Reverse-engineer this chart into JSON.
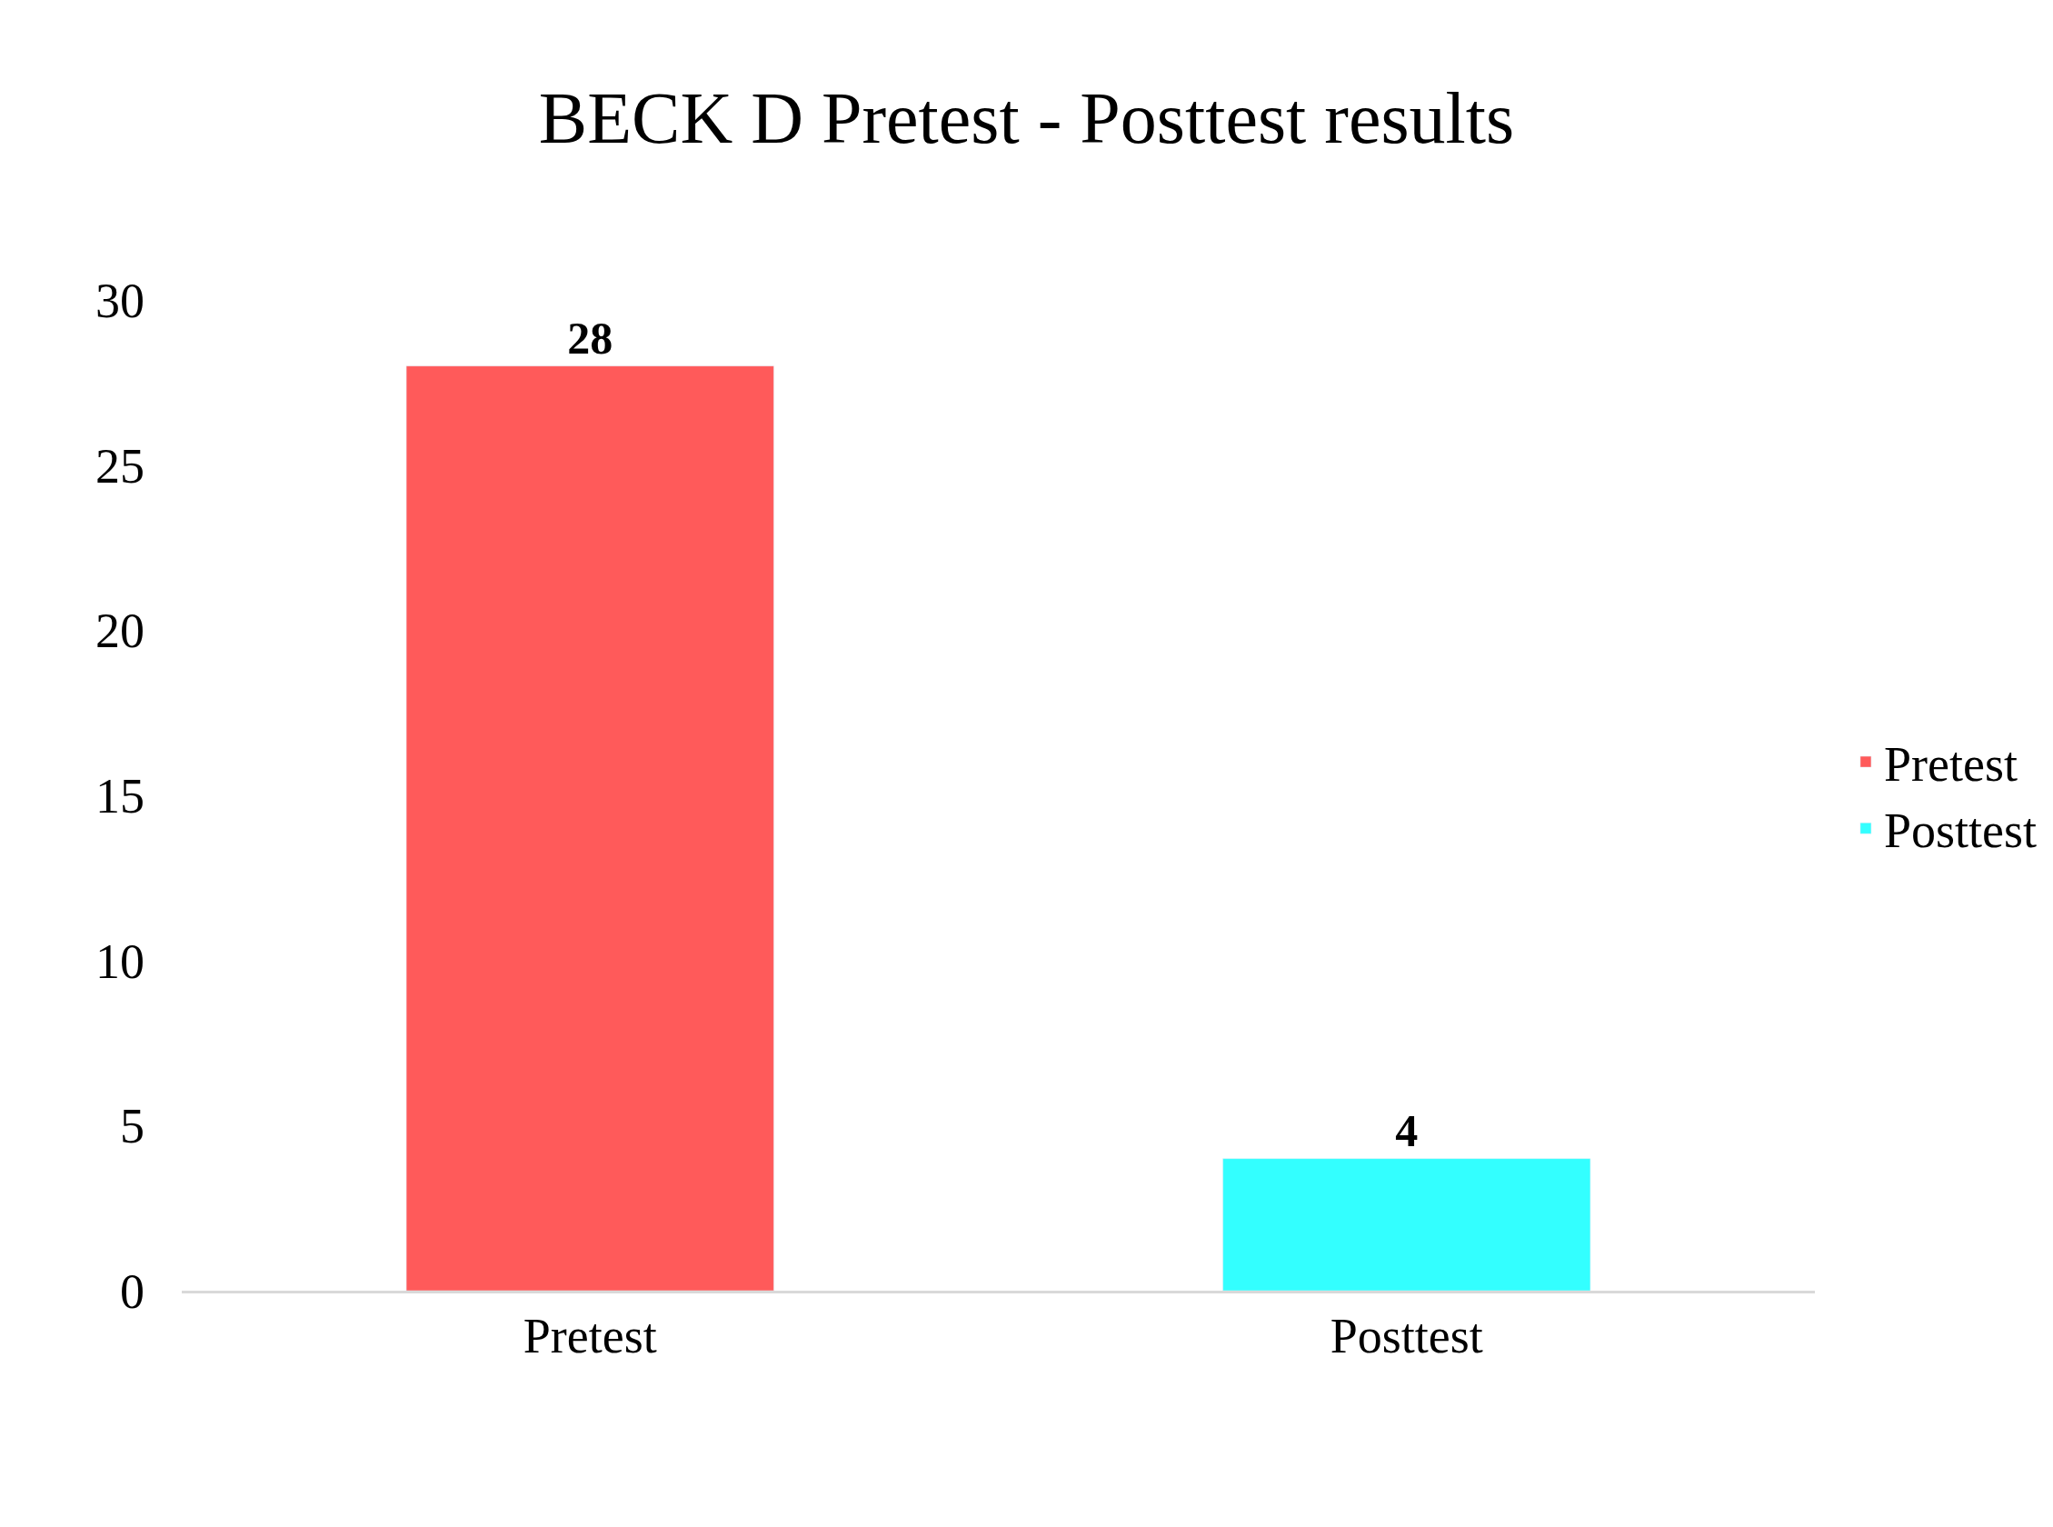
{
  "chart_data": {
    "type": "bar",
    "title": "BECK D Pretest - Posttest results",
    "categories": [
      "Pretest",
      "Posttest"
    ],
    "series": [
      {
        "name": "Pretest",
        "color": "#ff5a5a",
        "values": [
          28,
          null
        ]
      },
      {
        "name": "Posttest",
        "color": "#33ffff",
        "values": [
          null,
          4
        ]
      }
    ],
    "ylim": [
      0,
      30
    ],
    "yticks": [
      0,
      5,
      10,
      15,
      20,
      25,
      30
    ],
    "legend": "right",
    "data_labels": true
  }
}
